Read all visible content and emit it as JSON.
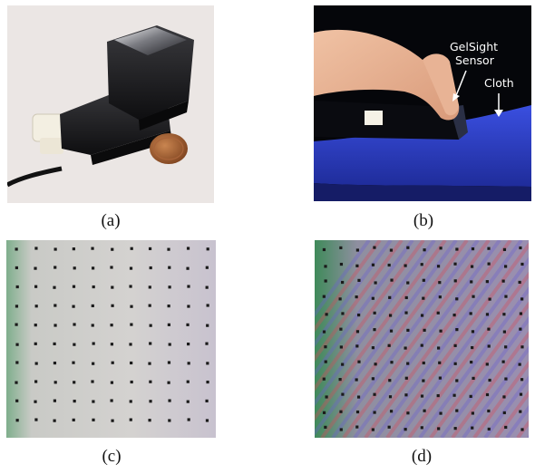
{
  "panels": [
    {
      "id": "a",
      "caption": "(a)"
    },
    {
      "id": "b",
      "caption": "(b)",
      "annotations": {
        "sensor_line1": "GelSight",
        "sensor_line2": "Sensor",
        "cloth": "Cloth"
      }
    },
    {
      "id": "c",
      "caption": "(c)"
    },
    {
      "id": "d",
      "caption": "(d)"
    }
  ],
  "colors": {
    "background_a": "#ebe6e4",
    "background_b": "#05060a",
    "cloth_blue": "#2b3fc9",
    "gel_gray": "#d6d4d2",
    "marker_dot": "#1a1a1a"
  }
}
